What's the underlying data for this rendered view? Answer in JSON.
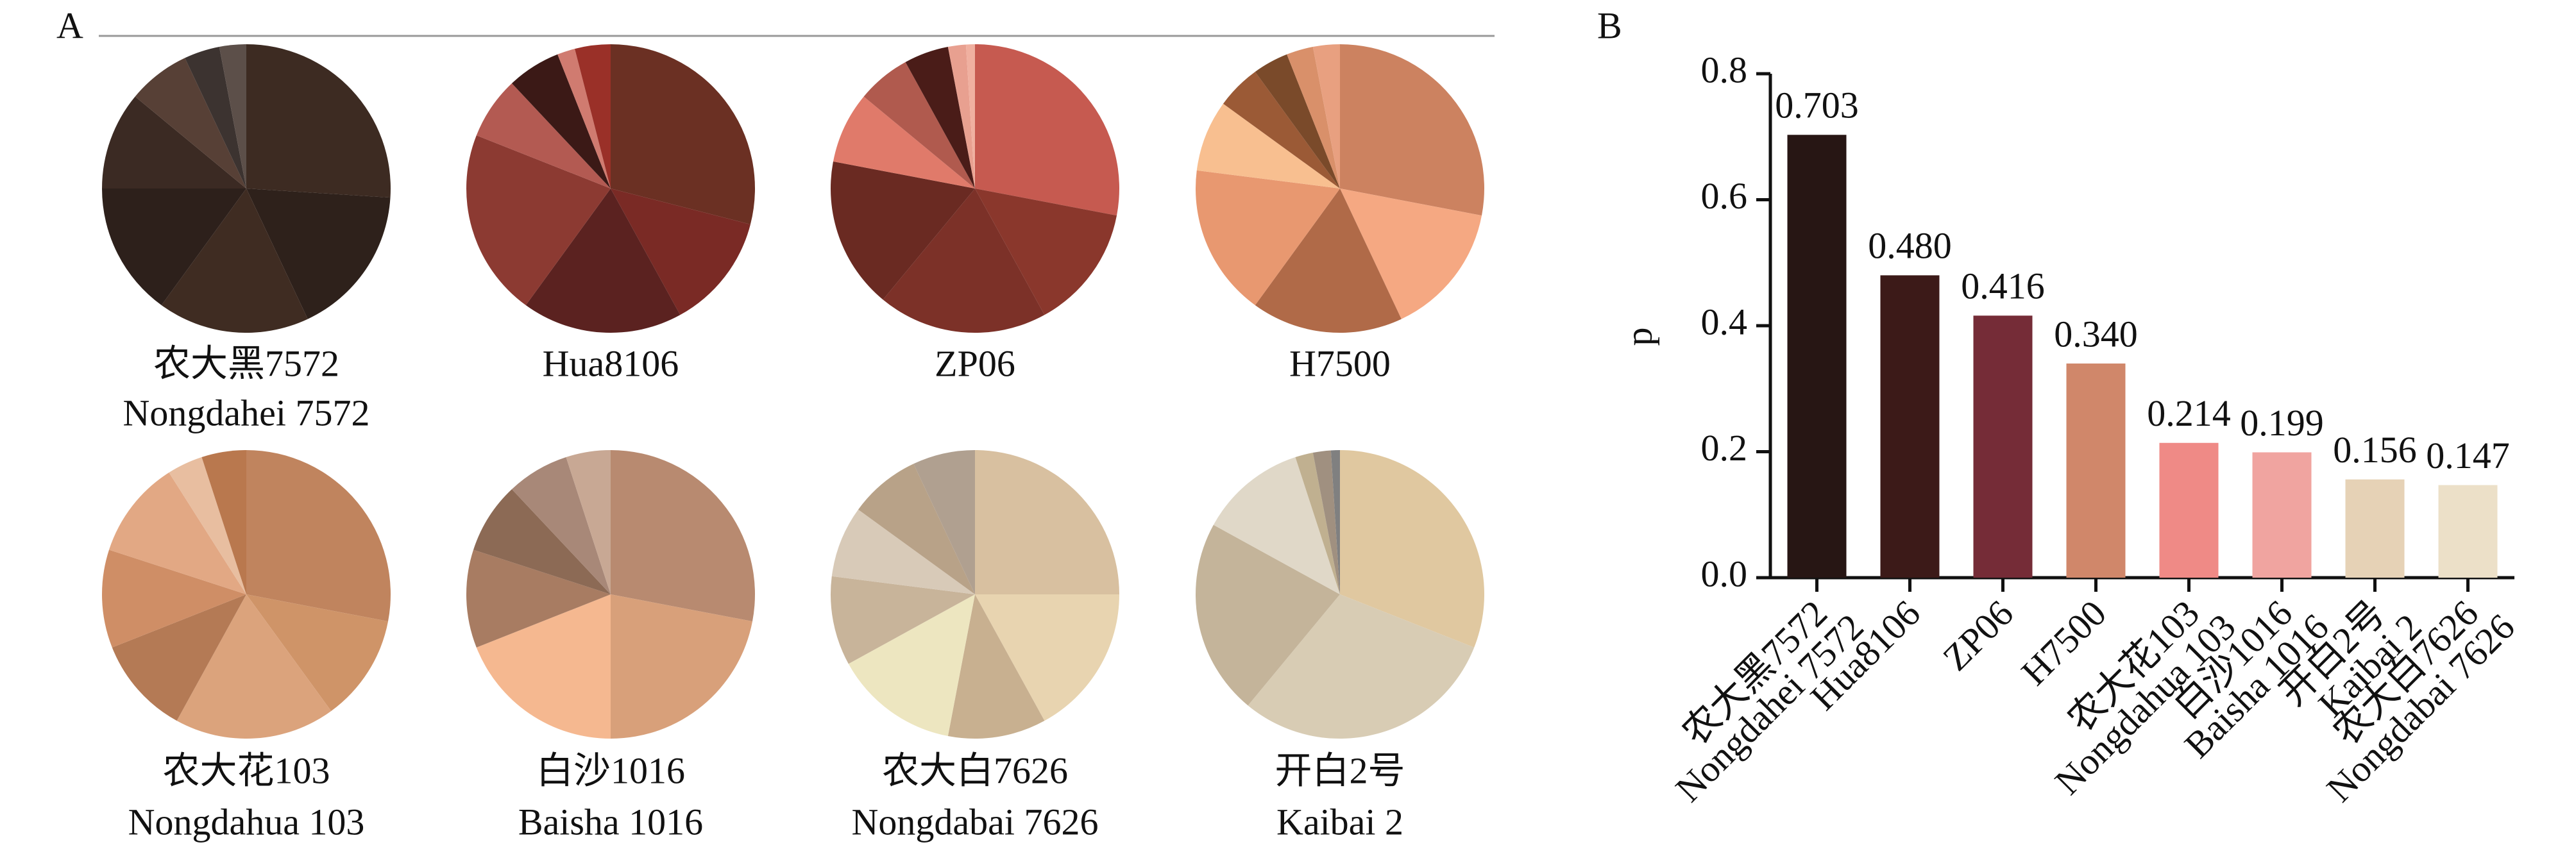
{
  "panels": [
    "A",
    "B"
  ],
  "chart_data": [
    {
      "type": "pie",
      "title": "农大黑7572",
      "subtitle": "Nongdahei 7572",
      "values": [
        26,
        17,
        17,
        15,
        11,
        7,
        4,
        3
      ],
      "colors": [
        "#3d2b22",
        "#2e211b",
        "#3f2c22",
        "#2d201b",
        "#3b2a23",
        "#574036",
        "#3c3330",
        "#5c4f49"
      ]
    },
    {
      "type": "pie",
      "title": "Hua8106",
      "values": [
        29,
        13,
        18,
        21,
        7,
        6,
        2,
        4
      ],
      "colors": [
        "#6b3023",
        "#7a2a25",
        "#5b2220",
        "#8c3a32",
        "#b35a52",
        "#3b1916",
        "#d07b70",
        "#9a3028"
      ]
    },
    {
      "type": "pie",
      "title": "ZP06",
      "values": [
        28,
        14,
        19,
        17,
        8,
        6,
        5,
        2,
        1
      ],
      "colors": [
        "#c65a50",
        "#8a372c",
        "#7c3128",
        "#6a2a22",
        "#e07a6a",
        "#b05a4e",
        "#4a1c18",
        "#e8a090",
        "#f0b0a0"
      ]
    },
    {
      "type": "pie",
      "title": "H7500",
      "values": [
        28,
        15,
        17,
        17,
        8,
        5,
        4,
        3,
        3
      ],
      "colors": [
        "#cc8260",
        "#f5a882",
        "#b06a48",
        "#e89870",
        "#f8bf90",
        "#9b5a36",
        "#7a4a2a",
        "#d9906a",
        "#e8a080"
      ]
    },
    {
      "type": "pie",
      "title": "农大花103",
      "subtitle": "Nongdahua 103",
      "values": [
        28,
        12,
        18,
        11,
        11,
        11,
        4,
        5
      ],
      "colors": [
        "#c0845e",
        "#cf9468",
        "#dba37c",
        "#b47a55",
        "#cf8e66",
        "#e2a884",
        "#e8bea0",
        "#b9784e"
      ]
    },
    {
      "type": "pie",
      "title": "白沙1016",
      "subtitle": "Baisha 1016",
      "values": [
        28,
        22,
        19,
        11,
        8,
        7,
        5
      ],
      "colors": [
        "#b88a70",
        "#d8a07a",
        "#f5b890",
        "#a87c62",
        "#8c6a55",
        "#a88878",
        "#c8a894"
      ]
    },
    {
      "type": "pie",
      "title": "农大白7626",
      "subtitle": "Nongdabai 7626",
      "values": [
        25,
        17,
        11,
        14,
        10,
        8,
        8,
        7
      ],
      "colors": [
        "#d8c0a0",
        "#e8d4b0",
        "#c8b090",
        "#ede6c0",
        "#c8b49a",
        "#d8cab8",
        "#b8a288",
        "#b0a090"
      ]
    },
    {
      "type": "pie",
      "title": "开白2号",
      "subtitle": "Kaibai 2",
      "values": [
        31,
        30,
        22,
        12,
        2,
        2,
        1
      ],
      "colors": [
        "#e0c8a0",
        "#d8ccb4",
        "#c4b49a",
        "#e0d8c8",
        "#c0b090",
        "#a09080",
        "#808080"
      ]
    },
    {
      "type": "bar",
      "ylabel": "p",
      "categories": [
        "农大黑7572",
        "Hua8106",
        "ZP06",
        "H7500",
        "农大花103",
        "白沙1016",
        "开白2号",
        "农大白7626"
      ],
      "categories_en": [
        "Nongdahei 7572",
        null,
        null,
        null,
        "Nongdahua 103",
        "Baisha 1016",
        "Kaibai 2",
        "Nongdabai 7626"
      ],
      "values": [
        0.703,
        0.48,
        0.416,
        0.34,
        0.214,
        0.199,
        0.156,
        0.147
      ],
      "value_labels": [
        "0.703",
        "0.480",
        "0.416",
        "0.340",
        "0.214",
        "0.199",
        "0.156",
        "0.147"
      ],
      "colors": [
        "#271614",
        "#3c1a18",
        "#752c37",
        "#d0876a",
        "#ef8a86",
        "#f0a4a0",
        "#e6d2b6",
        "#ece0c8"
      ],
      "ylim": [
        0,
        0.8
      ],
      "yticks": [
        {
          "value": 0,
          "label": "0.0"
        },
        {
          "value": 0.2,
          "label": "0.2"
        },
        {
          "value": 0.4,
          "label": "0.4"
        },
        {
          "value": 0.6,
          "label": "0.6"
        },
        {
          "value": 0.8,
          "label": "0.8"
        }
      ]
    }
  ]
}
